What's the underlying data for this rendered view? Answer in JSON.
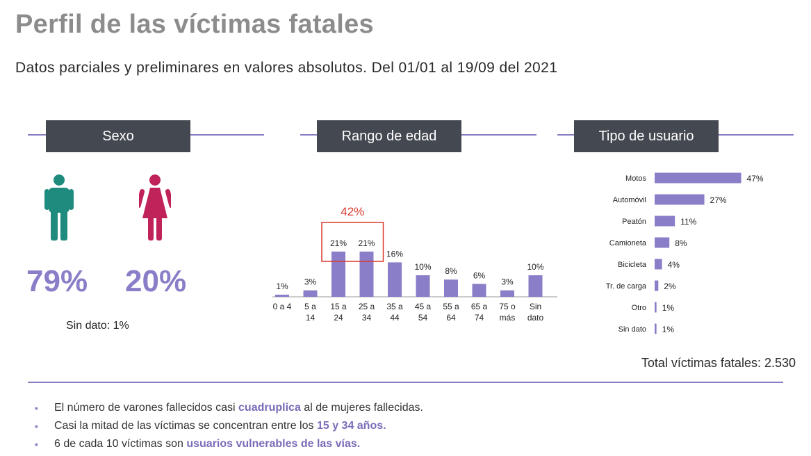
{
  "title": "Perfil de las víctimas fatales",
  "subtitle": "Datos parciales y preliminares en valores absolutos. Del 01/01 al 19/09 del 2021",
  "colors": {
    "accent": "#8b7ec8",
    "bar": "#8b7ec8",
    "header_bg": "#444850",
    "male": "#1f8a7e",
    "female": "#c0225a",
    "highlight_box": "#d9382c"
  },
  "sections": {
    "sexo": "Sexo",
    "rango": "Rango de edad",
    "tipo": "Tipo de usuario"
  },
  "sexo": {
    "male_icon": "male-person-icon",
    "female_icon": "female-person-icon",
    "male_pct": "79%",
    "female_pct": "20%",
    "sin_dato": "Sin dato: 1%"
  },
  "chart_data": [
    {
      "type": "bar",
      "title": "Rango de edad",
      "categories": [
        [
          "0 a 4"
        ],
        [
          "5 a",
          "14"
        ],
        [
          "15 a",
          "24"
        ],
        [
          "25 a",
          "34"
        ],
        [
          "35 a",
          "44"
        ],
        [
          "45 a",
          "54"
        ],
        [
          "55 a",
          "64"
        ],
        [
          "65 a",
          "74"
        ],
        [
          "75 o",
          "más"
        ],
        [
          "Sin",
          "dato"
        ]
      ],
      "values": [
        1,
        3,
        21,
        21,
        16,
        10,
        8,
        6,
        3,
        10
      ],
      "labels": [
        "1%",
        "3%",
        "21%",
        "21%",
        "16%",
        "10%",
        "8%",
        "6%",
        "3%",
        "10%"
      ],
      "highlight": {
        "label": "42%",
        "from_index": 2,
        "to_index": 3
      }
    },
    {
      "type": "bar",
      "orientation": "horizontal",
      "title": "Tipo de usuario",
      "categories": [
        "Motos",
        "Automóvil",
        "Peatón",
        "Camioneta",
        "Bicicleta",
        "Tr. de carga",
        "Otro",
        "Sin dato"
      ],
      "values": [
        47,
        27,
        11,
        8,
        4,
        2,
        1,
        1
      ],
      "labels": [
        "47%",
        "27%",
        "11%",
        "8%",
        "4%",
        "2%",
        "1%",
        "1%"
      ]
    }
  ],
  "total": "Total víctimas fatales: 2.530",
  "bullets": [
    {
      "parts": [
        {
          "t": "El número de varones fallecidos casi ",
          "hl": false
        },
        {
          "t": "cuadruplica",
          "hl": true
        },
        {
          "t": " al de mujeres fallecidas.",
          "hl": false
        }
      ]
    },
    {
      "parts": [
        {
          "t": "Casi la mitad de las víctimas se concentran entre los ",
          "hl": false
        },
        {
          "t": "15 y 34 años.",
          "hl": true
        }
      ]
    },
    {
      "parts": [
        {
          "t": "6 de cada 10 víctimas son ",
          "hl": false
        },
        {
          "t": "usuarios vulnerables de las vías.",
          "hl": true
        }
      ]
    }
  ],
  "bullet_marker": "▪"
}
